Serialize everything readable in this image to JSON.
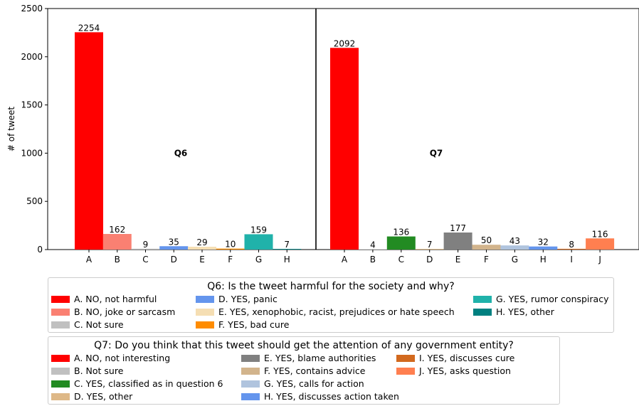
{
  "chart_data": {
    "type": "bar",
    "ylabel": "# of tweet",
    "ylim": [
      0,
      2500
    ],
    "yticks": [
      0,
      500,
      1000,
      1500,
      2000,
      2500
    ],
    "panels": [
      {
        "title": "Q6",
        "categories": [
          "A",
          "B",
          "C",
          "D",
          "E",
          "F",
          "G",
          "H"
        ],
        "values": [
          2254,
          162,
          9,
          35,
          29,
          10,
          159,
          7
        ],
        "colors": [
          "#ff0000",
          "#fa8072",
          "#c0c0c0",
          "#6495ed",
          "#f5deb3",
          "#ff8c00",
          "#20b2aa",
          "#008080"
        ]
      },
      {
        "title": "Q7",
        "categories": [
          "A",
          "B",
          "C",
          "D",
          "E",
          "F",
          "G",
          "H",
          "I",
          "J"
        ],
        "values": [
          2092,
          4,
          136,
          7,
          177,
          50,
          43,
          32,
          8,
          116
        ],
        "colors": [
          "#ff0000",
          "#c0c0c0",
          "#228b22",
          "#deb887",
          "#808080",
          "#d2b48c",
          "#b0c4de",
          "#6495ed",
          "#d2691e",
          "#ff7f50"
        ]
      }
    ]
  },
  "legends": {
    "q6": {
      "title": "Q6: Is the tweet harmful for the society and why?",
      "items": [
        {
          "label": "A. NO, not harmful",
          "color": "#ff0000"
        },
        {
          "label": "B. NO, joke or sarcasm",
          "color": "#fa8072"
        },
        {
          "label": "C. Not sure",
          "color": "#c0c0c0"
        },
        {
          "label": "D. YES, panic",
          "color": "#6495ed"
        },
        {
          "label": "E. YES, xenophobic, racist, prejudices or hate speech",
          "color": "#f5deb3"
        },
        {
          "label": "F. YES, bad cure",
          "color": "#ff8c00"
        },
        {
          "label": "G. YES, rumor conspiracy",
          "color": "#20b2aa"
        },
        {
          "label": "H. YES, other",
          "color": "#008080"
        }
      ]
    },
    "q7": {
      "title": "Q7: Do you think that this tweet should get the attention of any government entity?",
      "items": [
        {
          "label": "A. NO, not interesting",
          "color": "#ff0000"
        },
        {
          "label": "B. Not sure",
          "color": "#c0c0c0"
        },
        {
          "label": "C. YES, classified as in question 6",
          "color": "#228b22"
        },
        {
          "label": "D. YES, other",
          "color": "#deb887"
        },
        {
          "label": "E. YES, blame authorities",
          "color": "#808080"
        },
        {
          "label": "F. YES, contains advice",
          "color": "#d2b48c"
        },
        {
          "label": "G. YES, calls for action",
          "color": "#b0c4de"
        },
        {
          "label": "H. YES, discusses action taken",
          "color": "#6495ed"
        },
        {
          "label": "I. YES, discusses cure",
          "color": "#d2691e"
        },
        {
          "label": "J. YES, asks question",
          "color": "#ff7f50"
        }
      ]
    }
  }
}
